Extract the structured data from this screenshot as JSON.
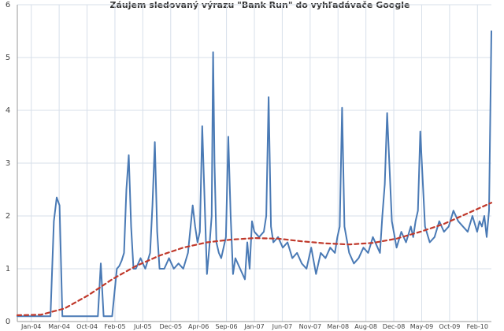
{
  "chart_data": {
    "type": "line",
    "title": "Záujem sledovaný výrazu \"Bank Run\" do vyhľadávače Google",
    "xlabel": "",
    "ylabel": "",
    "ylim": [
      0,
      6
    ],
    "yticks": [
      0,
      1,
      2,
      3,
      4,
      5,
      6
    ],
    "xlim": [
      0,
      100
    ],
    "grid": true,
    "x_tick_labels": [
      "Jan-04",
      "Mar-04",
      "Oct-04",
      "Feb-05",
      "Jul-05",
      "Dec-05",
      "Apr-06",
      "Sep-06",
      "Jan-07",
      "Jun-07",
      "Nov-07",
      "Mar-08",
      "Aug-08",
      "Dec-08",
      "May-09",
      "Oct-09",
      "Feb-10"
    ],
    "colors": {
      "series": "#4a7ab5",
      "trend": "#c0392b",
      "grid": "#d7dfea"
    },
    "series": [
      {
        "style": "solid",
        "x": [
          0,
          1.5,
          3,
          5,
          7,
          7.7,
          8.3,
          8.9,
          9.5,
          10.5,
          12,
          13,
          14,
          15,
          16,
          17,
          17.6,
          18.2,
          18.8,
          19.3,
          20,
          21,
          21.5,
          22,
          22.5,
          23,
          23.5,
          24,
          24.5,
          25,
          26,
          27,
          28,
          28.5,
          29,
          29.5,
          30,
          31,
          32,
          33,
          34,
          35,
          36,
          37,
          37.5,
          38,
          38.5,
          39,
          39.5,
          40,
          40.5,
          41,
          41.3,
          41.6,
          42,
          42.5,
          43,
          44,
          44.5,
          45,
          45.5,
          46,
          47,
          48,
          48.5,
          49,
          49.5,
          50,
          51,
          52,
          52.5,
          53,
          53.5,
          54,
          55,
          56,
          57,
          58,
          59,
          60,
          61,
          62,
          63,
          64,
          65,
          66,
          67,
          67.5,
          68,
          68.5,
          69,
          70,
          71,
          72,
          73,
          74,
          75,
          76,
          76.5,
          77,
          77.5,
          78,
          79,
          80,
          81,
          82,
          83,
          83.5,
          84,
          84.5,
          85,
          86,
          87,
          88,
          89,
          90,
          91,
          92,
          93,
          94,
          95,
          96,
          97,
          97.5,
          98,
          98.5,
          99,
          99.5,
          100
        ],
        "values": [
          0.1,
          0.1,
          0.1,
          0.1,
          0.1,
          1.9,
          2.35,
          2.2,
          0.1,
          0.1,
          0.1,
          0.1,
          0.1,
          0.1,
          0.1,
          0.1,
          1.1,
          0.1,
          0.1,
          0.1,
          0.1,
          1.0,
          1.05,
          1.15,
          1.3,
          2.5,
          3.15,
          1.8,
          1.0,
          1.0,
          1.2,
          1.0,
          1.3,
          2.2,
          3.4,
          1.7,
          1.0,
          1.0,
          1.2,
          1.0,
          1.1,
          1.0,
          1.3,
          2.2,
          1.8,
          1.5,
          1.7,
          3.7,
          2.3,
          0.9,
          1.4,
          2.0,
          5.1,
          3.0,
          1.5,
          1.3,
          1.2,
          1.6,
          3.5,
          2.0,
          0.9,
          1.2,
          1.0,
          0.8,
          1.5,
          1.0,
          1.9,
          1.7,
          1.6,
          1.7,
          2.0,
          4.25,
          1.8,
          1.5,
          1.6,
          1.4,
          1.5,
          1.2,
          1.3,
          1.1,
          1.0,
          1.4,
          0.9,
          1.3,
          1.2,
          1.4,
          1.3,
          1.6,
          1.8,
          4.05,
          1.8,
          1.3,
          1.1,
          1.2,
          1.4,
          1.3,
          1.6,
          1.4,
          1.3,
          2.0,
          2.6,
          3.95,
          1.9,
          1.4,
          1.7,
          1.5,
          1.8,
          1.6,
          1.9,
          2.1,
          3.6,
          1.8,
          1.5,
          1.6,
          1.9,
          1.7,
          1.8,
          2.1,
          1.9,
          1.8,
          1.7,
          2.0,
          1.7,
          1.9,
          1.8,
          2.0,
          1.6,
          2.1,
          5.5
        ]
      },
      {
        "style": "dashed",
        "x": [
          0,
          5,
          10,
          15,
          20,
          25,
          30,
          35,
          40,
          45,
          50,
          55,
          60,
          65,
          70,
          75,
          80,
          85,
          90,
          95,
          100
        ],
        "values": [
          0.12,
          0.13,
          0.25,
          0.5,
          0.8,
          1.05,
          1.25,
          1.4,
          1.5,
          1.55,
          1.58,
          1.57,
          1.52,
          1.48,
          1.46,
          1.49,
          1.57,
          1.7,
          1.85,
          2.05,
          2.25
        ]
      }
    ]
  }
}
